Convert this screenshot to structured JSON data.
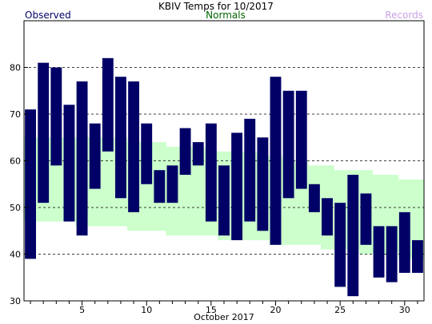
{
  "chart_data": {
    "type": "bar",
    "title": "KBIV Temps for 10/2017",
    "legend": [
      {
        "label": "Observed",
        "color": "#000066"
      },
      {
        "label": "Normals",
        "color": "#006600"
      },
      {
        "label": "Records",
        "color": "#c8a0e0"
      }
    ],
    "xlabel": "October 2017",
    "ylabel": "",
    "ylim": [
      30,
      90
    ],
    "xlim": [
      0.5,
      31.5
    ],
    "y_ticks": [
      30,
      40,
      50,
      60,
      70,
      80
    ],
    "x_ticks": [
      5,
      10,
      15,
      20,
      25,
      30
    ],
    "grid": "horizontal dashed",
    "colors": {
      "observed_bar": "#000066",
      "normals_band": "#ccffcc",
      "grid": "#000000"
    },
    "x": [
      1,
      2,
      3,
      4,
      5,
      6,
      7,
      8,
      9,
      10,
      11,
      12,
      13,
      14,
      15,
      16,
      17,
      18,
      19,
      20,
      21,
      22,
      23,
      24,
      25,
      26,
      27,
      28,
      29,
      30,
      31
    ],
    "series": [
      {
        "name": "Observed",
        "low": [
          39,
          51,
          59,
          47,
          44,
          54,
          62,
          52,
          49,
          55,
          51,
          51,
          57,
          59,
          47,
          44,
          43,
          47,
          45,
          42,
          52,
          54,
          49,
          44,
          33,
          31,
          42,
          35,
          34,
          36,
          36
        ],
        "high": [
          71,
          81,
          80,
          72,
          77,
          68,
          82,
          78,
          77,
          68,
          58,
          59,
          67,
          64,
          68,
          59,
          66,
          69,
          65,
          78,
          75,
          75,
          55,
          52,
          51,
          57,
          53,
          46,
          46,
          49,
          43
        ]
      },
      {
        "name": "Normals",
        "low": [
          47,
          47,
          47,
          47,
          46,
          46,
          46,
          46,
          45,
          45,
          45,
          44,
          44,
          44,
          44,
          43,
          43,
          43,
          43,
          42,
          42,
          42,
          42,
          41,
          41,
          41,
          40,
          40,
          40,
          39,
          39
        ],
        "high": [
          65,
          65,
          65,
          65,
          65,
          65,
          65,
          65,
          64,
          64,
          64,
          63,
          63,
          63,
          62,
          62,
          62,
          62,
          61,
          61,
          60,
          60,
          59,
          59,
          58,
          58,
          58,
          57,
          57,
          56,
          56
        ]
      }
    ]
  }
}
